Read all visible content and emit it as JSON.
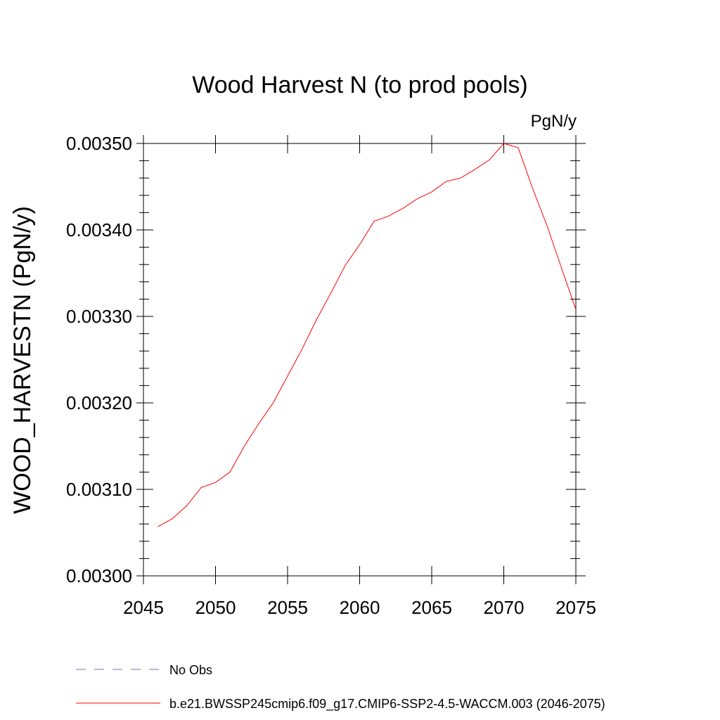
{
  "chart_data": {
    "type": "line",
    "title": "Wood Harvest N (to prod pools)",
    "units": "PgN/y",
    "ylabel": "WOOD_HARVESTN  (PgN/y)",
    "xlabel": "",
    "xlim": [
      2045,
      2075
    ],
    "ylim": [
      0.003,
      0.0035
    ],
    "xticks": [
      2045,
      2050,
      2055,
      2060,
      2065,
      2070,
      2075
    ],
    "xtick_labels": [
      "2045",
      "2050",
      "2055",
      "2060",
      "2065",
      "2070",
      "2075"
    ],
    "yticks": [
      0.003,
      0.0031,
      0.0032,
      0.0033,
      0.0034,
      0.0035
    ],
    "ytick_labels": [
      "0.00300",
      "0.00310",
      "0.00320",
      "0.00330",
      "0.00340",
      "0.00350"
    ],
    "grid": false,
    "legend_position": "bottom",
    "series": [
      {
        "name": "b.e21.BWSSP245cmip6.f09_g17.CMIP6-SSP2-4.5-WACCM.003 (2046-2075)",
        "color": "#ff0000",
        "style": "solid",
        "x": [
          2046,
          2047,
          2048,
          2049,
          2050,
          2051,
          2052,
          2053,
          2054,
          2055,
          2056,
          2057,
          2058,
          2059,
          2060,
          2061,
          2062,
          2063,
          2064,
          2065,
          2066,
          2067,
          2068,
          2069,
          2070,
          2071,
          2072,
          2073,
          2074,
          2075
        ],
        "y": [
          0.003057,
          0.003066,
          0.003081,
          0.003102,
          0.003108,
          0.00312,
          0.00315,
          0.003176,
          0.0032,
          0.003231,
          0.003262,
          0.003296,
          0.003327,
          0.003359,
          0.003383,
          0.00341,
          0.003416,
          0.003425,
          0.003436,
          0.003444,
          0.003456,
          0.00346,
          0.00347,
          0.003481,
          0.0035,
          0.003495,
          0.003448,
          0.003405,
          0.003356,
          0.003308
        ]
      },
      {
        "name": "No Obs",
        "color": "#7b68b0",
        "style": "dashed",
        "x": [],
        "y": []
      }
    ]
  }
}
